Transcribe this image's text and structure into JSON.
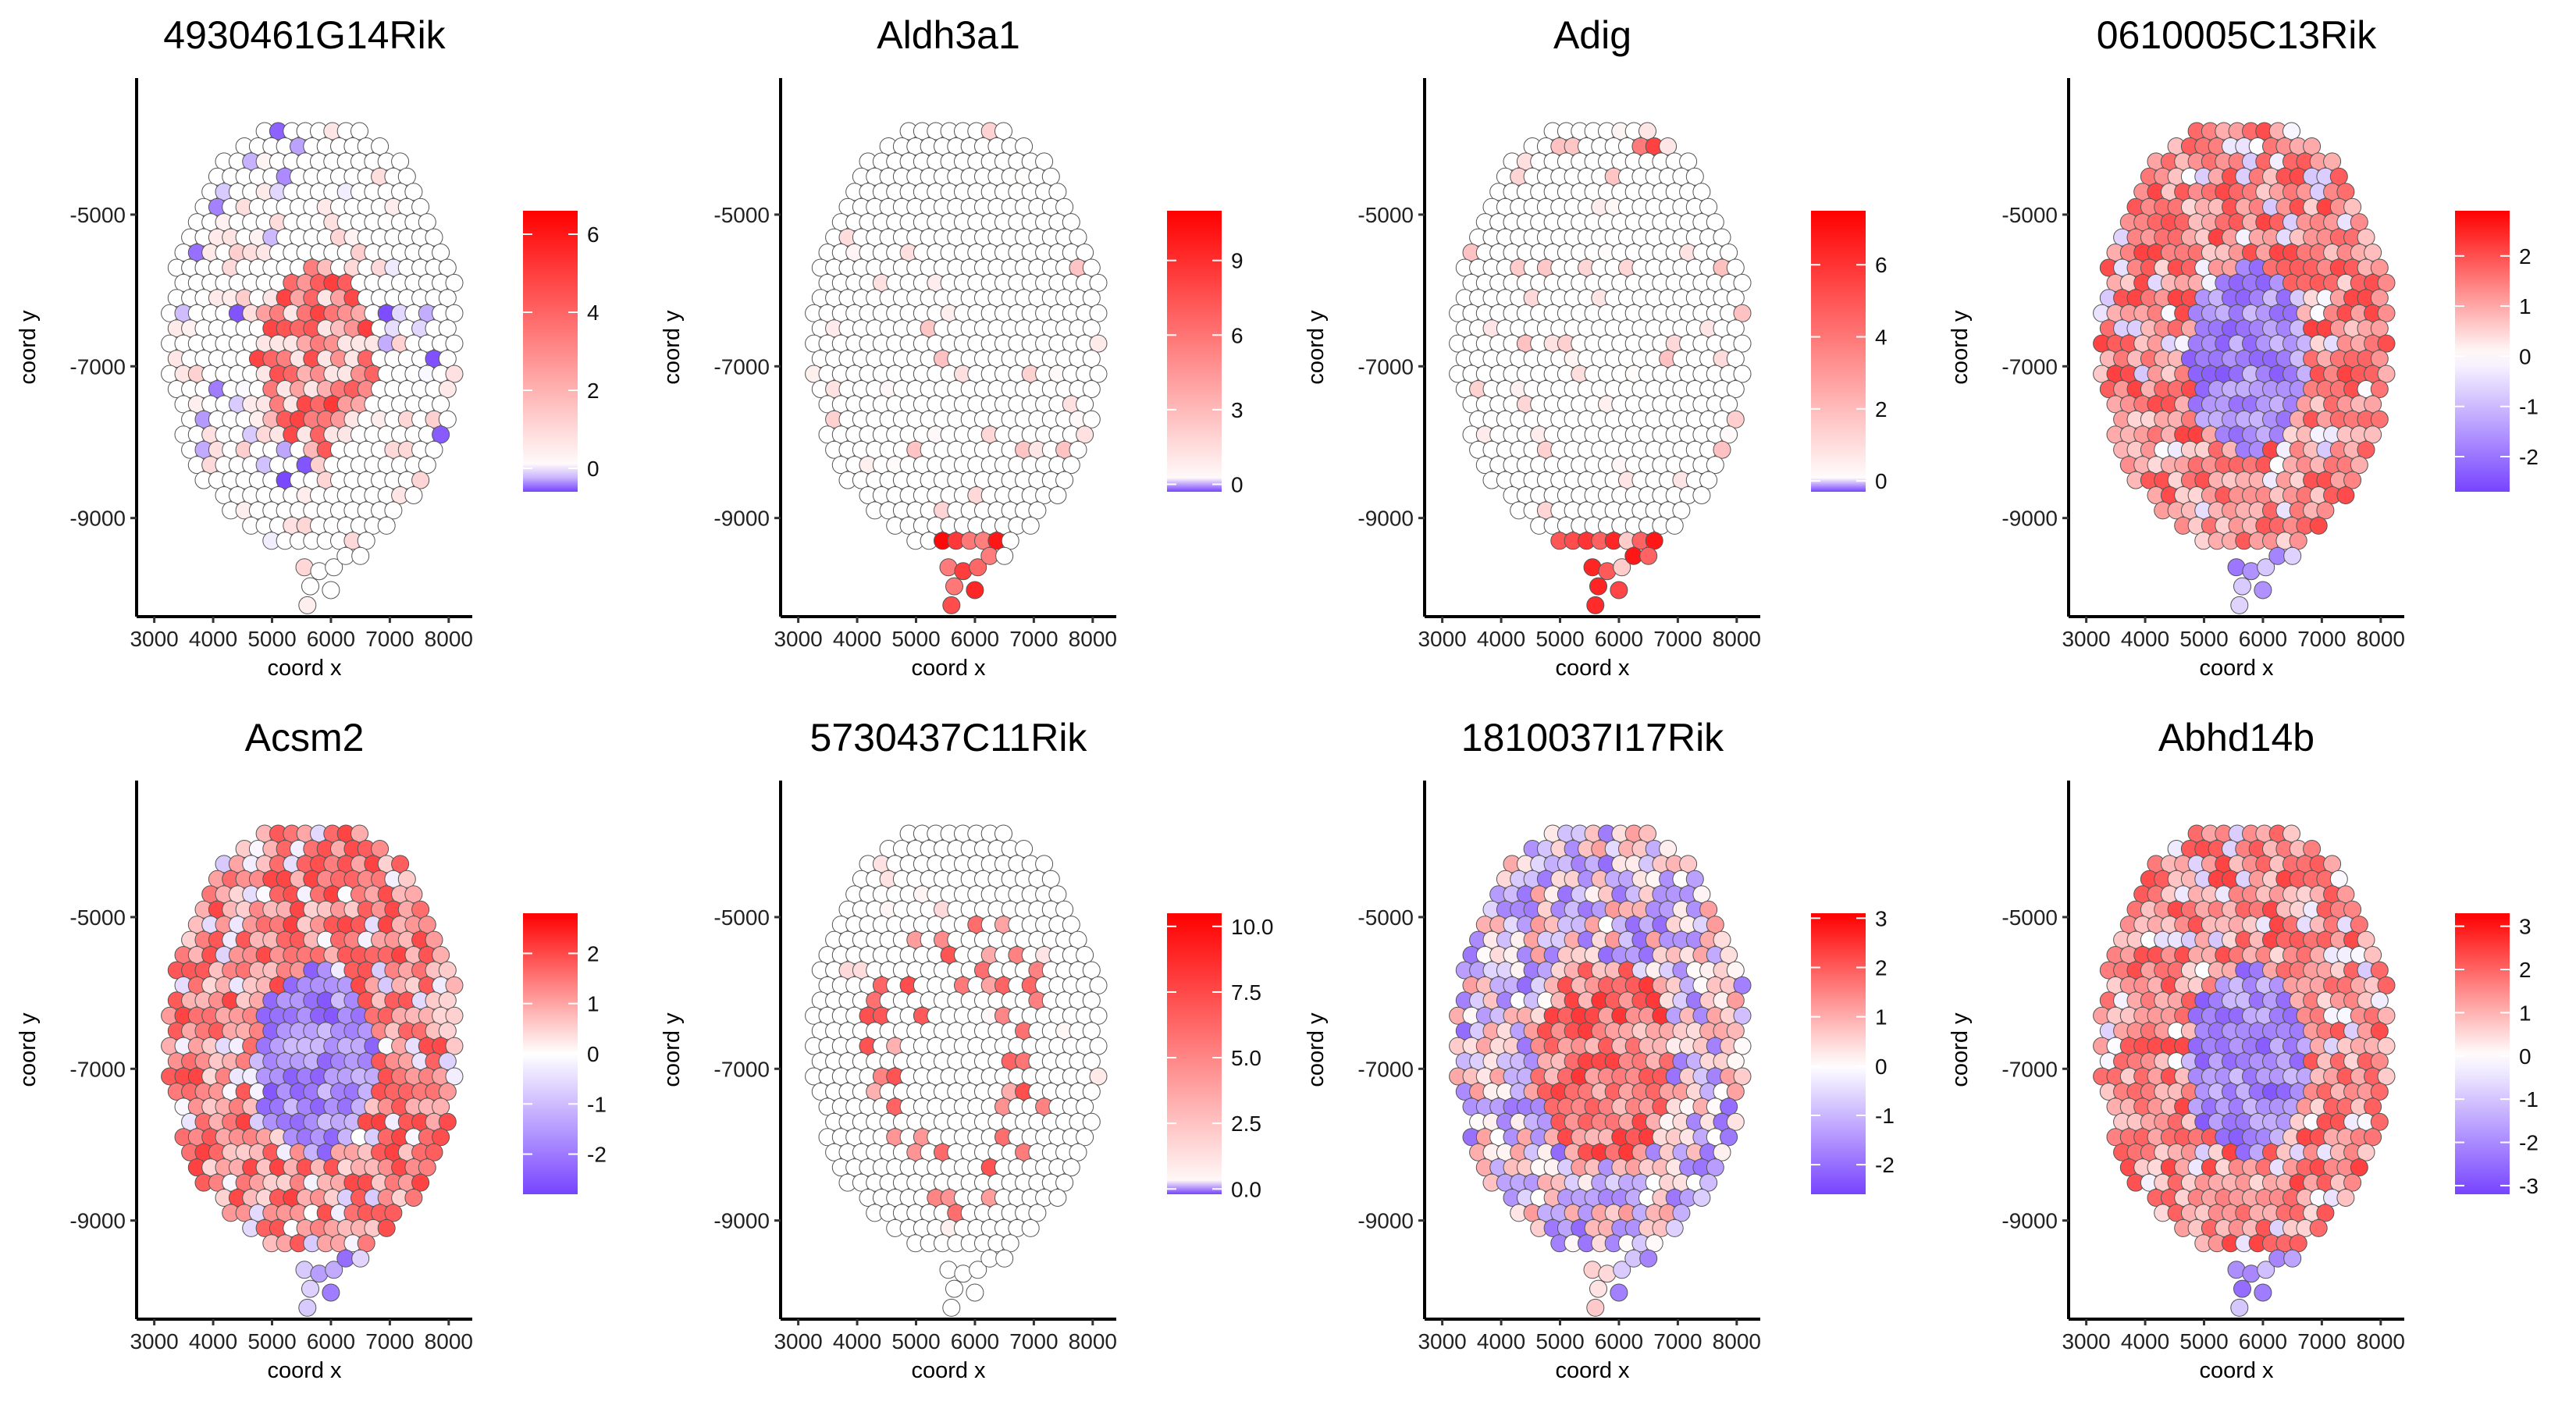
{
  "figure": {
    "xlabel": "coord x",
    "ylabel": "coord y",
    "x_ticks": [
      "3000",
      "4000",
      "5000",
      "6000",
      "7000",
      "8000"
    ],
    "y_ticks": [
      "-5000",
      "-7000",
      "-9000"
    ],
    "colors": {
      "low": "#7744ff",
      "mid": "#ffffff",
      "high": "#ff0000",
      "point_stroke": "#555555"
    }
  },
  "chart_data": [
    {
      "type": "scatter",
      "title": "4930461G14Rik",
      "xlabel": "coord x",
      "ylabel": "coord y",
      "xlim": [
        2700,
        8400
      ],
      "ylim": [
        -10300,
        -3200
      ],
      "pattern": "center_high",
      "value_range": [
        -0.6,
        6.6
      ],
      "legend": {
        "ticks": [
          "6",
          "4",
          "2",
          "0"
        ],
        "tick_values": [
          6,
          4,
          2,
          0
        ],
        "range": [
          -0.6,
          6.6
        ]
      }
    },
    {
      "type": "scatter",
      "title": "Aldh3a1",
      "xlabel": "coord x",
      "ylabel": "coord y",
      "xlim": [
        2700,
        8400
      ],
      "ylim": [
        -10300,
        -3200
      ],
      "pattern": "sparse_bottom",
      "value_range": [
        -0.3,
        11
      ],
      "legend": {
        "ticks": [
          "9",
          "6",
          "3",
          "0"
        ],
        "tick_values": [
          9,
          6,
          3,
          0
        ],
        "range": [
          -0.3,
          11
        ]
      }
    },
    {
      "type": "scatter",
      "title": "Adig",
      "xlabel": "coord x",
      "ylabel": "coord y",
      "xlim": [
        2700,
        8400
      ],
      "ylim": [
        -10300,
        -3200
      ],
      "pattern": "edges_bottom_topright",
      "value_range": [
        -0.3,
        7.5
      ],
      "legend": {
        "ticks": [
          "6",
          "4",
          "2",
          "0"
        ],
        "tick_values": [
          6,
          4,
          2,
          0
        ],
        "range": [
          -0.3,
          7.5
        ]
      }
    },
    {
      "type": "scatter",
      "title": "0610005C13Rik",
      "xlabel": "coord x",
      "ylabel": "coord y",
      "xlim": [
        2700,
        8400
      ],
      "ylim": [
        -10300,
        -3200
      ],
      "pattern": "center_low",
      "value_range": [
        -2.7,
        2.9
      ],
      "legend": {
        "ticks": [
          "2",
          "1",
          "0",
          "-1",
          "-2"
        ],
        "tick_values": [
          2,
          1,
          0,
          -1,
          -2
        ],
        "range": [
          -2.7,
          2.9
        ]
      }
    },
    {
      "type": "scatter",
      "title": "Acsm2",
      "xlabel": "coord x",
      "ylabel": "coord y",
      "xlim": [
        2700,
        8400
      ],
      "ylim": [
        -10300,
        -3200
      ],
      "pattern": "center_low",
      "value_range": [
        -2.8,
        2.8
      ],
      "legend": {
        "ticks": [
          "2",
          "1",
          "0",
          "-1",
          "-2"
        ],
        "tick_values": [
          2,
          1,
          0,
          -1,
          -2
        ],
        "range": [
          -2.8,
          2.8
        ]
      }
    },
    {
      "type": "scatter",
      "title": "5730437C11Rik",
      "xlabel": "coord x",
      "ylabel": "coord y",
      "xlim": [
        2700,
        8400
      ],
      "ylim": [
        -10300,
        -3200
      ],
      "pattern": "sparse_ring",
      "value_range": [
        -0.2,
        10.5
      ],
      "legend": {
        "ticks": [
          "10.0",
          "7.5",
          "5.0",
          "2.5",
          "0.0"
        ],
        "tick_values": [
          10,
          7.5,
          5,
          2.5,
          0
        ],
        "range": [
          -0.2,
          10.5
        ]
      }
    },
    {
      "type": "scatter",
      "title": "1810037I17Rik",
      "xlabel": "coord x",
      "ylabel": "coord y",
      "xlim": [
        2700,
        8400
      ],
      "ylim": [
        -10300,
        -3200
      ],
      "pattern": "center_high_diverging",
      "value_range": [
        -2.6,
        3.1
      ],
      "legend": {
        "ticks": [
          "3",
          "2",
          "1",
          "0",
          "-1",
          "-2"
        ],
        "tick_values": [
          3,
          2,
          1,
          0,
          -1,
          -2
        ],
        "range": [
          -2.6,
          3.1
        ]
      }
    },
    {
      "type": "scatter",
      "title": "Abhd14b",
      "xlabel": "coord x",
      "ylabel": "coord y",
      "xlim": [
        2700,
        8400
      ],
      "ylim": [
        -10300,
        -3200
      ],
      "pattern": "center_low",
      "value_range": [
        -3.2,
        3.3
      ],
      "legend": {
        "ticks": [
          "3",
          "2",
          "1",
          "0",
          "-1",
          "-2",
          "-3"
        ],
        "tick_values": [
          3,
          2,
          1,
          0,
          -1,
          -2,
          -3
        ],
        "range": [
          -3.2,
          3.3
        ]
      }
    }
  ]
}
